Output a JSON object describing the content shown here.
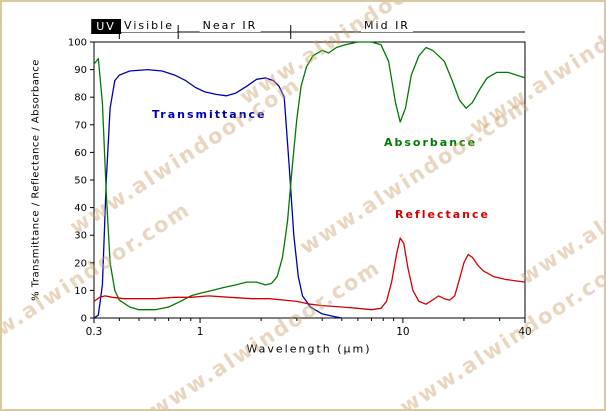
{
  "watermark": {
    "text": "www.alwindoor.com",
    "color": "#c9a06c",
    "opacity": 0.42
  },
  "chart_data": {
    "type": "line",
    "title": "",
    "xlabel": "Wavelength (μm)",
    "ylabel": "% Transmittance / Reflectance / Absorbance",
    "x_scale": "log",
    "xlim": [
      0.3,
      40
    ],
    "ylim": [
      0,
      100
    ],
    "x_ticks_labeled": [
      0.3,
      1,
      10,
      40
    ],
    "x_ticks_minor": [
      0.4,
      0.5,
      0.6,
      0.7,
      0.8,
      0.9,
      2,
      3,
      4,
      5,
      6,
      7,
      8,
      9,
      20,
      30
    ],
    "y_tick_step": 10,
    "grid": false,
    "regions": [
      {
        "label": "UV",
        "from": 0.3,
        "to": 0.4,
        "highlight": true
      },
      {
        "label": "Visible",
        "from": 0.4,
        "to": 0.78,
        "highlight": false
      },
      {
        "label": "Near IR",
        "from": 0.78,
        "to": 2.8,
        "highlight": false
      },
      {
        "label": "Mid IR",
        "from": 2.8,
        "to": 40,
        "highlight": false
      }
    ],
    "series": [
      {
        "name": "Transmittance",
        "color": "#0000b0",
        "points": [
          [
            0.3,
            0
          ],
          [
            0.315,
            1
          ],
          [
            0.33,
            12
          ],
          [
            0.345,
            50
          ],
          [
            0.36,
            76
          ],
          [
            0.38,
            86
          ],
          [
            0.4,
            88
          ],
          [
            0.45,
            89.5
          ],
          [
            0.55,
            90
          ],
          [
            0.65,
            89.5
          ],
          [
            0.75,
            88
          ],
          [
            0.85,
            86
          ],
          [
            0.95,
            83.5
          ],
          [
            1.05,
            82
          ],
          [
            1.2,
            81
          ],
          [
            1.35,
            80.5
          ],
          [
            1.5,
            81.5
          ],
          [
            1.7,
            84
          ],
          [
            1.9,
            86.5
          ],
          [
            2.1,
            87
          ],
          [
            2.3,
            86
          ],
          [
            2.45,
            84
          ],
          [
            2.6,
            80
          ],
          [
            2.75,
            55
          ],
          [
            2.9,
            30
          ],
          [
            3.05,
            15
          ],
          [
            3.2,
            8
          ],
          [
            3.5,
            4
          ],
          [
            4.0,
            1.5
          ],
          [
            4.6,
            0.5
          ],
          [
            5.0,
            0
          ]
        ]
      },
      {
        "name": "Absorbance",
        "color": "#007a00",
        "points": [
          [
            0.3,
            92
          ],
          [
            0.315,
            94
          ],
          [
            0.33,
            78
          ],
          [
            0.345,
            45
          ],
          [
            0.36,
            20
          ],
          [
            0.38,
            10
          ],
          [
            0.4,
            6.5
          ],
          [
            0.45,
            4
          ],
          [
            0.5,
            3
          ],
          [
            0.6,
            3
          ],
          [
            0.7,
            4
          ],
          [
            0.8,
            6
          ],
          [
            0.9,
            8
          ],
          [
            1.0,
            9
          ],
          [
            1.15,
            10
          ],
          [
            1.3,
            11
          ],
          [
            1.5,
            12
          ],
          [
            1.7,
            13
          ],
          [
            1.9,
            13
          ],
          [
            2.1,
            12
          ],
          [
            2.25,
            12.5
          ],
          [
            2.4,
            15
          ],
          [
            2.55,
            22
          ],
          [
            2.7,
            35
          ],
          [
            2.85,
            55
          ],
          [
            3.0,
            72
          ],
          [
            3.15,
            84
          ],
          [
            3.35,
            91
          ],
          [
            3.6,
            95
          ],
          [
            4.0,
            97
          ],
          [
            4.3,
            96
          ],
          [
            4.7,
            98
          ],
          [
            5.2,
            99
          ],
          [
            6.0,
            100
          ],
          [
            7.0,
            100
          ],
          [
            7.8,
            99
          ],
          [
            8.5,
            93
          ],
          [
            9.2,
            78
          ],
          [
            9.7,
            71
          ],
          [
            10.3,
            76
          ],
          [
            11,
            88
          ],
          [
            12,
            95
          ],
          [
            13,
            98
          ],
          [
            14,
            97
          ],
          [
            15,
            95
          ],
          [
            16,
            93
          ],
          [
            17.5,
            86
          ],
          [
            19,
            79
          ],
          [
            20.5,
            76
          ],
          [
            22,
            78
          ],
          [
            24,
            83
          ],
          [
            26,
            87
          ],
          [
            29,
            89
          ],
          [
            33,
            89
          ],
          [
            40,
            87
          ]
        ]
      },
      {
        "name": "Reflectance",
        "color": "#d40000",
        "points": [
          [
            0.3,
            6
          ],
          [
            0.32,
            7.5
          ],
          [
            0.34,
            8
          ],
          [
            0.37,
            7.5
          ],
          [
            0.42,
            7
          ],
          [
            0.5,
            7
          ],
          [
            0.6,
            7
          ],
          [
            0.75,
            7.5
          ],
          [
            0.9,
            7.5
          ],
          [
            1.1,
            8
          ],
          [
            1.4,
            7.5
          ],
          [
            1.8,
            7
          ],
          [
            2.2,
            7
          ],
          [
            2.6,
            6.5
          ],
          [
            3.0,
            6
          ],
          [
            3.5,
            5
          ],
          [
            4.0,
            4.5
          ],
          [
            5.0,
            4
          ],
          [
            6.0,
            3.5
          ],
          [
            7.0,
            3
          ],
          [
            7.8,
            3.5
          ],
          [
            8.3,
            6
          ],
          [
            8.8,
            13
          ],
          [
            9.3,
            23
          ],
          [
            9.7,
            29
          ],
          [
            10.1,
            27
          ],
          [
            10.6,
            18
          ],
          [
            11.2,
            10
          ],
          [
            12,
            6
          ],
          [
            13,
            5
          ],
          [
            14,
            6.5
          ],
          [
            15,
            8
          ],
          [
            16,
            7
          ],
          [
            17,
            6.5
          ],
          [
            18,
            8
          ],
          [
            19,
            14
          ],
          [
            20,
            20
          ],
          [
            21,
            23
          ],
          [
            22,
            22
          ],
          [
            23.5,
            19
          ],
          [
            25,
            17
          ],
          [
            28,
            15
          ],
          [
            32,
            14
          ],
          [
            40,
            13
          ]
        ]
      }
    ]
  }
}
